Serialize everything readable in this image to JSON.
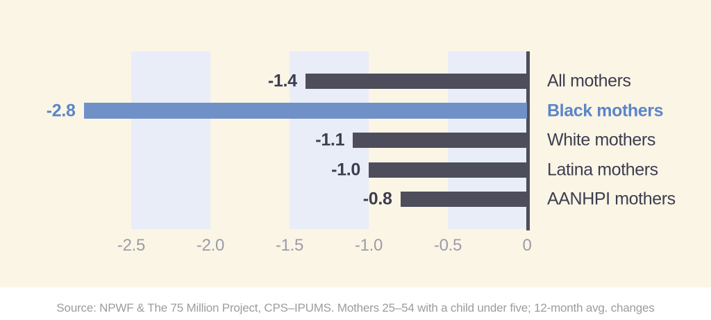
{
  "colors": {
    "background": "#fbf5e6",
    "band": "#e9edf8",
    "bar": "#4d4d5b",
    "highlight_bar": "#6f91c8",
    "highlight_text": "#5b85c8",
    "text": "#3d3d4f",
    "tick_text": "#9b9ca8",
    "source_text": "#9c9c9c",
    "footer_background": "#ffffff"
  },
  "chart_data": {
    "type": "bar",
    "orientation": "horizontal",
    "categories": [
      "All mothers",
      "Black mothers",
      "White mothers",
      "Latina mothers",
      "AANHPI mothers"
    ],
    "values": [
      -1.4,
      -2.8,
      -1.1,
      -1.0,
      -0.8
    ],
    "value_labels": [
      "-1.4",
      "-2.8",
      "-1.1",
      "-1.0",
      "-0.8"
    ],
    "highlight_index": 1,
    "highlight_category": "Black mothers",
    "x_tick_labels": [
      "-2.5",
      "-2.0",
      "-1.5",
      "-1.0",
      "-0.5",
      "0"
    ],
    "x_tick_values": [
      -2.5,
      -2.0,
      -1.5,
      -1.0,
      -0.5,
      0
    ],
    "xlim": [
      -3.0,
      0
    ],
    "shaded_bands": [
      [
        -2.5,
        -2.0
      ],
      [
        -1.5,
        -1.0
      ],
      [
        -0.5,
        0
      ]
    ],
    "grid": "off",
    "legend": "none",
    "title": "",
    "xlabel": "",
    "ylabel": ""
  },
  "source": {
    "text": "Source: NPWF & The 75 Million Project, CPS–IPUMS. Mothers 25–54 with a child under five; 12-month avg. changes"
  }
}
